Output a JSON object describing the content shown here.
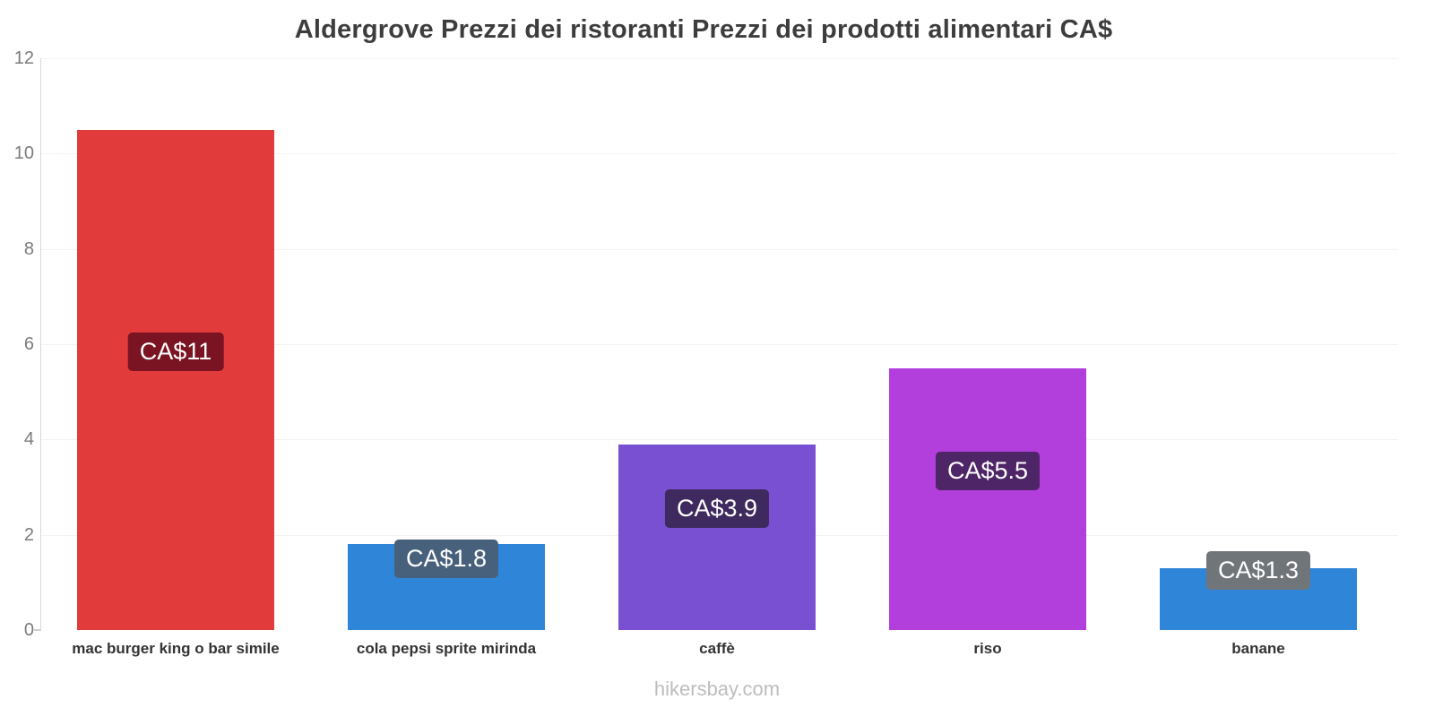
{
  "title": "Aldergrove Prezzi dei ristoranti Prezzi dei prodotti alimentari CA$",
  "footer": "hikersbay.com",
  "chart_data": {
    "type": "bar",
    "title": "Aldergrove Prezzi dei ristoranti Prezzi dei prodotti alimentari CA$",
    "categories": [
      "mac burger king o bar simile",
      "cola pepsi sprite mirinda",
      "caffè",
      "riso",
      "banane"
    ],
    "values": [
      10.5,
      1.8,
      3.9,
      5.5,
      1.3
    ],
    "bar_labels": [
      "CA$11",
      "CA$1.8",
      "CA$3.9",
      "CA$5.5",
      "CA$1.3"
    ],
    "bar_colors": [
      "#e23b3b",
      "#2f86d8",
      "#7a50d2",
      "#b23fdc",
      "#2f86d8"
    ],
    "label_bg_colors": [
      "#7a1423",
      "#47617c",
      "#3e2a5e",
      "#4e2566",
      "#70757a"
    ],
    "xlabel": "",
    "ylabel": "",
    "ylim": [
      0,
      12
    ],
    "yticks": [
      0,
      2,
      4,
      6,
      8,
      10,
      12
    ],
    "grid": true,
    "legend_position": "none"
  }
}
